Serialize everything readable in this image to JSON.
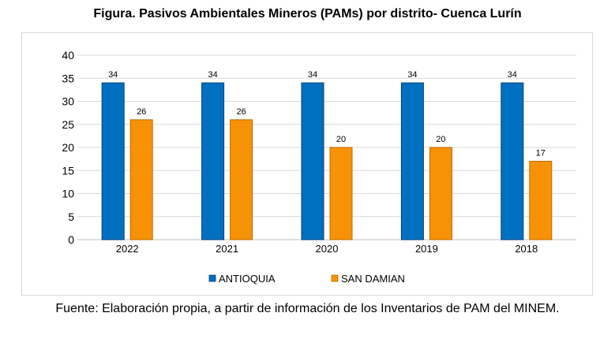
{
  "title": "Figura. Pasivos Ambientales Mineros (PAMs) por distrito- Cuenca Lurín",
  "source": "Fuente: Elaboración propia, a partir de información de los Inventarios de PAM del MINEM.",
  "chart_data": {
    "type": "bar",
    "title": "Figura. Pasivos Ambientales Mineros (PAMs) por distrito- Cuenca Lurín",
    "xlabel": "",
    "ylabel": "",
    "categories": [
      "2022",
      "2021",
      "2020",
      "2019",
      "2018"
    ],
    "ylim": [
      0,
      40
    ],
    "yticks": [
      0,
      5,
      10,
      15,
      20,
      25,
      30,
      35,
      40
    ],
    "grid": true,
    "legend": "bottom",
    "series": [
      {
        "name": "ANTIOQUIA",
        "color": "#0070c0",
        "values": [
          34,
          34,
          34,
          34,
          34
        ]
      },
      {
        "name": "SAN DAMIAN",
        "color": "#f79206",
        "values": [
          26,
          26,
          20,
          20,
          17
        ]
      }
    ]
  }
}
